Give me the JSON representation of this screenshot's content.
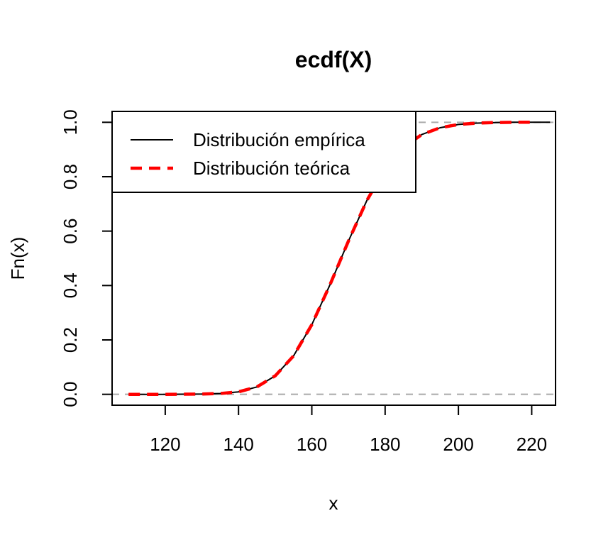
{
  "chart_data": {
    "type": "line",
    "title": "ecdf(X)",
    "xlabel": "x",
    "ylabel": "Fn(x)",
    "xlim": [
      105.5,
      226.5
    ],
    "ylim": [
      -0.04,
      1.04
    ],
    "xticks": [
      "120",
      "140",
      "160",
      "180",
      "200",
      "220"
    ],
    "yticks": [
      "0.0",
      "0.2",
      "0.4",
      "0.6",
      "0.8",
      "1.0"
    ],
    "reference_lines": [
      0,
      1
    ],
    "legend": {
      "position": "top-left",
      "entries": [
        "Distribución empírica",
        "Distribución teórica"
      ]
    },
    "series": [
      {
        "name": "Distribución empírica",
        "color": "#000000",
        "style": "solid",
        "x": [
          110,
          120,
          130,
          135,
          140,
          145,
          150,
          155,
          160,
          165,
          170,
          175,
          180,
          185,
          190,
          195,
          200,
          205,
          210,
          215,
          220,
          225
        ],
        "y": [
          0.0,
          0.0,
          0.001,
          0.003,
          0.009,
          0.027,
          0.068,
          0.141,
          0.256,
          0.404,
          0.564,
          0.712,
          0.829,
          0.908,
          0.955,
          0.98,
          0.992,
          0.997,
          0.999,
          1.0,
          1.0,
          1.0
        ]
      },
      {
        "name": "Distribución teórica",
        "color": "#ff0000",
        "style": "dashed",
        "x": [
          110,
          120,
          130,
          135,
          140,
          145,
          150,
          155,
          160,
          165,
          170,
          175,
          180,
          185,
          190,
          195,
          200,
          205,
          210,
          215,
          220
        ],
        "y": [
          0.0,
          0.0,
          0.001,
          0.003,
          0.009,
          0.027,
          0.068,
          0.141,
          0.256,
          0.404,
          0.564,
          0.712,
          0.829,
          0.908,
          0.955,
          0.98,
          0.992,
          0.997,
          0.999,
          1.0,
          1.0
        ]
      }
    ],
    "colors": {
      "reference": "#aaaaaa",
      "frame": "#000000"
    }
  }
}
